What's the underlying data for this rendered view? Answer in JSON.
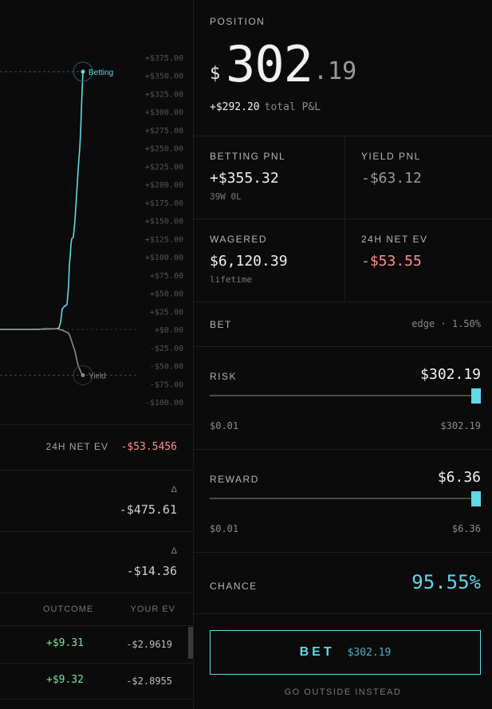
{
  "chart_data": {
    "type": "line",
    "ylim": [
      -100,
      375
    ],
    "ytick_labels": [
      "+$375.00",
      "+$350.00",
      "+$325.00",
      "+$300.00",
      "+$275.00",
      "+$250.00",
      "+$225.00",
      "+$200.00",
      "+$175.00",
      "+$150.00",
      "+$125.00",
      "+$100.00",
      "+$75.00",
      "+$50.00",
      "+$25.00",
      "+$0.00",
      "-$25.00",
      "-$50.00",
      "-$75.00",
      "-$100.00"
    ],
    "yticks": [
      375,
      350,
      325,
      300,
      275,
      250,
      225,
      200,
      175,
      150,
      125,
      100,
      75,
      50,
      25,
      0,
      -25,
      -50,
      -75,
      -100
    ],
    "reference_lines": [
      355.32,
      0,
      -63.12
    ],
    "series": [
      {
        "name": "Betting",
        "color": "#5fd8e8",
        "x": [
          0,
          40,
          70,
          74,
          76,
          78,
          80,
          84,
          86,
          87,
          88,
          89,
          90,
          92,
          94,
          96,
          98,
          100,
          101,
          102,
          103,
          104
        ],
        "values": [
          0,
          0,
          1,
          2,
          10,
          28,
          31,
          34,
          60,
          90,
          100,
          118,
          125,
          127,
          150,
          185,
          220,
          250,
          270,
          300,
          330,
          355.32
        ]
      },
      {
        "name": "Yield",
        "color": "#8a8a8a",
        "x": [
          0,
          50,
          55,
          72,
          74,
          78,
          86,
          88,
          91,
          94,
          96,
          98,
          100,
          102,
          104
        ],
        "values": [
          0,
          0,
          1,
          1,
          0,
          -1,
          -5,
          -10,
          -20,
          -30,
          -40,
          -50,
          -55,
          -60,
          -63.12
        ]
      }
    ]
  },
  "left_panel": {
    "net_ev_label": "24H NET EV",
    "net_ev_value": "-$53.5456",
    "delta_symbol": "Δ",
    "delta_1": "-$475.61",
    "delta_2": "-$14.36",
    "table": {
      "col_outcome": "OUTCOME",
      "col_ev": "YOUR EV",
      "rows": [
        {
          "outcome": "+$9.31",
          "ev": "-$2.9619"
        },
        {
          "outcome": "+$9.32",
          "ev": "-$2.8955"
        }
      ]
    }
  },
  "position": {
    "label": "POSITION",
    "currency": "$",
    "integer": "302",
    "decimal": ".19",
    "pnl": "+$292.20",
    "pnl_label": "total P&L"
  },
  "stats": {
    "betting_pnl_label": "BETTING PNL",
    "betting_pnl_value": "+$355.32",
    "betting_pnl_sub": "39W 0L",
    "yield_pnl_label": "YIELD PNL",
    "yield_pnl_value": "-$63.12",
    "wagered_label": "WAGERED",
    "wagered_value": "$6,120.39",
    "wagered_sub": "lifetime",
    "net_ev_label": "24H NET EV",
    "net_ev_value": "-$53.55"
  },
  "bet": {
    "label": "BET",
    "edge": "edge · 1.50%"
  },
  "risk": {
    "label": "RISK",
    "value": "$302.19",
    "min": "$0.01",
    "max": "$302.19",
    "level": 1.0
  },
  "reward": {
    "label": "REWARD",
    "value": "$6.36",
    "min": "$0.01",
    "max": "$6.36",
    "level": 1.0
  },
  "chance": {
    "label": "CHANCE",
    "value": "95.55%"
  },
  "actions": {
    "bet_label": "BET",
    "bet_amount": "$302.19",
    "go_outside": "GO OUTSIDE INSTEAD"
  },
  "colors": {
    "accent": "#5fd8e8",
    "negative": "#ff8f8f",
    "positive": "#7fe39a"
  }
}
